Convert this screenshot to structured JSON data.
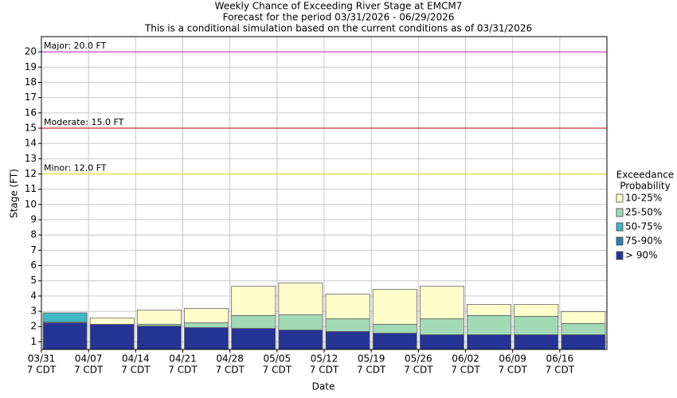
{
  "chart_data": {
    "type": "floating_bar",
    "title": "Weekly Chance of Exceeding River Stage at EMCM7",
    "subtitle": "Forecast for the period 03/31/2026 - 06/29/2026",
    "note": "This is a conditional simulation based on the current conditions as of 03/31/2026",
    "x_label": "Date",
    "y_label": "Stage (FT)",
    "legend_title": [
      "Exceedance",
      "Probability"
    ],
    "categories": [
      [
        "03/31",
        "7 CDT"
      ],
      [
        "04/07",
        "7 CDT"
      ],
      [
        "04/14",
        "7 CDT"
      ],
      [
        "04/21",
        "7 CDT"
      ],
      [
        "04/28",
        "7 CDT"
      ],
      [
        "05/05",
        "7 CDT"
      ],
      [
        "05/12",
        "7 CDT"
      ],
      [
        "05/19",
        "7 CDT"
      ],
      [
        "05/26",
        "7 CDT"
      ],
      [
        "06/02",
        "7 CDT"
      ],
      [
        "06/09",
        "7 CDT"
      ],
      [
        "06/16",
        "7 CDT"
      ]
    ],
    "series": [
      {
        "name": "10-25%",
        "color": "#ffffcc",
        "values": [
          2.9,
          2.56,
          3.08,
          3.19,
          4.64,
          4.85,
          4.12,
          4.44,
          4.64,
          3.45,
          3.45,
          2.98
        ]
      },
      {
        "name": "25-50%",
        "color": "#a1dab4",
        "values": [
          2.9,
          2.15,
          2.15,
          2.25,
          2.72,
          2.77,
          2.51,
          2.15,
          2.51,
          2.72,
          2.67,
          2.2
        ]
      },
      {
        "name": "50-75%",
        "color": "#41b6c4",
        "values": [
          2.9,
          2.15,
          2.04,
          1.94,
          1.88,
          1.78,
          1.68,
          1.57,
          1.47,
          1.47,
          1.47,
          1.47
        ]
      },
      {
        "name": "75-90%",
        "color": "#2c7fb8",
        "values": [
          2.3,
          2.15,
          2.04,
          1.94,
          1.88,
          1.78,
          1.68,
          1.57,
          1.47,
          1.47,
          1.47,
          1.47
        ]
      },
      {
        "name": "> 90%",
        "color": "#253494",
        "values": [
          2.25,
          2.15,
          2.04,
          1.94,
          1.88,
          1.78,
          1.68,
          1.57,
          1.47,
          1.47,
          1.47,
          1.47
        ]
      }
    ],
    "thresholds": [
      {
        "label": "Major: 20.0 FT",
        "value": 20,
        "color": "#cc33cc"
      },
      {
        "label": "Moderate: 15.0 FT",
        "value": 15,
        "color": "#cc3333"
      },
      {
        "label": "Minor: 12.0 FT",
        "value": 12,
        "color": "#dddd33"
      }
    ],
    "ylim": [
      0.5,
      21
    ],
    "yticks": [
      1,
      2,
      3,
      4,
      5,
      6,
      7,
      8,
      9,
      10,
      11,
      12,
      13,
      14,
      15,
      16,
      17,
      18,
      19,
      20
    ],
    "grid": true
  }
}
